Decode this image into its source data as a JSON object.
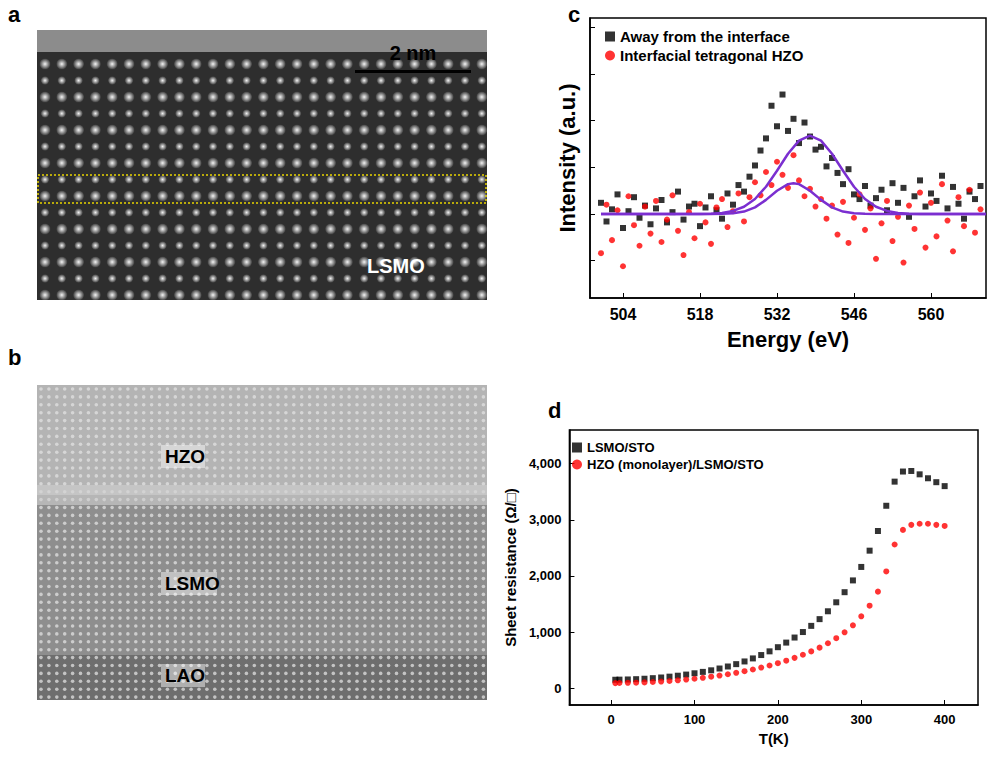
{
  "images": [
    {
      "panel": "a",
      "scale_bar": "2 nm",
      "labels": [
        "LSMO"
      ]
    },
    {
      "panel": "b",
      "labels": [
        "HZO",
        "LSMO",
        "LAO"
      ]
    }
  ],
  "chart_data": [
    {
      "panel": "c",
      "type": "scatter",
      "xlabel": "Energy (eV)",
      "ylabel": "Intensity (a.u.)",
      "xlim": [
        498,
        570
      ],
      "xticks": [
        504,
        518,
        532,
        546,
        560
      ],
      "ylim": [
        -9,
        21
      ],
      "yticks": [
        -5,
        0,
        5,
        10,
        15,
        20
      ],
      "tick_labels": "x",
      "legend": "upper left",
      "grid": false,
      "series": [
        {
          "name": "Away from the interface",
          "color": "#000000",
          "marker": "square",
          "x": [
            500,
            501,
            502,
            503,
            504,
            505,
            506,
            507,
            508,
            509,
            510,
            511,
            512,
            513,
            514,
            515,
            516,
            517,
            518,
            519,
            520,
            521,
            522,
            523,
            524,
            525,
            526,
            527,
            528,
            529,
            530,
            531,
            532,
            533,
            534,
            535,
            536,
            537,
            538,
            539,
            540,
            541,
            542,
            543,
            544,
            545,
            546,
            547,
            548,
            549,
            550,
            551,
            552,
            553,
            554,
            555,
            556,
            557,
            558,
            559,
            560,
            561,
            562,
            563,
            564,
            565,
            566,
            567,
            568,
            569
          ],
          "values": [
            1.2,
            -0.8,
            0.5,
            2.1,
            -1.5,
            0.3,
            1.8,
            -0.4,
            0.9,
            -1.1,
            0.6,
            1.5,
            -0.9,
            0.2,
            2.4,
            -0.6,
            0.8,
            1.1,
            -1.3,
            0.7,
            1.9,
            0.4,
            -0.5,
            2.2,
            1.0,
            3.1,
            2.4,
            4.0,
            5.2,
            6.8,
            8.1,
            11.6,
            9.4,
            12.8,
            8.9,
            10.2,
            7.6,
            9.8,
            8.3,
            6.9,
            7.2,
            5.1,
            6.0,
            4.4,
            3.2,
            4.8,
            2.1,
            1.6,
            3.0,
            0.9,
            1.7,
            2.6,
            0.4,
            3.3,
            1.2,
            2.8,
            -0.3,
            1.9,
            3.6,
            0.8,
            2.2,
            1.4,
            4.1,
            0.6,
            2.9,
            1.1,
            -0.5,
            2.4,
            1.6,
            3.0
          ]
        },
        {
          "name": "Interfacial tetragonal HZO",
          "color": "#ff0000",
          "marker": "circle",
          "x": [
            500,
            501,
            502,
            503,
            504,
            505,
            506,
            507,
            508,
            509,
            510,
            511,
            512,
            513,
            514,
            515,
            516,
            517,
            518,
            519,
            520,
            521,
            522,
            523,
            524,
            525,
            526,
            527,
            528,
            529,
            530,
            531,
            532,
            533,
            534,
            535,
            536,
            537,
            538,
            539,
            540,
            541,
            542,
            543,
            544,
            545,
            546,
            547,
            548,
            549,
            550,
            551,
            552,
            553,
            554,
            555,
            556,
            557,
            558,
            559,
            560,
            561,
            562,
            563,
            564,
            565,
            566,
            567,
            568,
            569
          ],
          "values": [
            -4.2,
            1.0,
            -2.8,
            0.4,
            -5.6,
            1.9,
            -1.2,
            -3.4,
            0.8,
            -2.1,
            1.4,
            -3.0,
            -0.6,
            2.0,
            -1.8,
            -4.4,
            0.2,
            -2.6,
            1.1,
            -0.9,
            -3.2,
            0.7,
            1.6,
            -1.4,
            0.3,
            2.2,
            -0.8,
            1.8,
            3.4,
            2.0,
            4.5,
            3.1,
            5.6,
            4.2,
            2.8,
            6.3,
            3.6,
            1.9,
            2.7,
            0.8,
            1.6,
            -0.5,
            0.9,
            -2.2,
            1.3,
            -3.1,
            -0.4,
            2.1,
            -1.7,
            0.6,
            -4.8,
            -1.0,
            1.4,
            -2.9,
            -0.3,
            -5.2,
            0.9,
            -1.6,
            2.3,
            -3.6,
            1.2,
            -2.4,
            3.2,
            -0.7,
            -4.0,
            1.8,
            -1.3,
            2.6,
            -2.0,
            0.5
          ]
        },
        {
          "type": "line",
          "color": "#7b2fd0",
          "line_style": "solid",
          "x": [
            500,
            518,
            520,
            522,
            524,
            526,
            528,
            530,
            532,
            534,
            536,
            538,
            540,
            542,
            544,
            546,
            548,
            550,
            552,
            554,
            556,
            558,
            570
          ],
          "values": [
            0,
            0.01,
            0.04,
            0.12,
            0.33,
            0.78,
            1.61,
            2.92,
            4.63,
            6.45,
            7.86,
            8.4,
            7.86,
            6.45,
            4.63,
            2.92,
            1.61,
            0.78,
            0.33,
            0.12,
            0.04,
            0.01,
            0
          ]
        },
        {
          "type": "line",
          "color": "#7b2fd0",
          "line_style": "solid",
          "x": [
            500,
            520,
            522,
            524,
            526,
            528,
            530,
            532,
            534,
            535,
            536,
            538,
            540,
            542,
            544,
            546,
            548,
            550,
            570
          ],
          "values": [
            0,
            0,
            0.02,
            0.08,
            0.26,
            0.71,
            1.51,
            2.49,
            3.2,
            3.3,
            3.2,
            2.49,
            1.51,
            0.71,
            0.26,
            0.08,
            0.02,
            0,
            0
          ]
        }
      ]
    },
    {
      "panel": "d",
      "type": "scatter",
      "xlabel": "T(K)",
      "ylabel": "Sheet resistance (Ω/□)",
      "xlim": [
        -50,
        440
      ],
      "xticks": [
        0,
        100,
        200,
        300,
        400
      ],
      "ylim": [
        -300,
        4600
      ],
      "yticks": [
        0,
        1000,
        2000,
        3000,
        4000
      ],
      "legend": "upper left",
      "grid": false,
      "series": [
        {
          "name": "LSMO/STO",
          "color": "#000000",
          "marker": "square",
          "x": [
            5,
            10,
            20,
            30,
            40,
            50,
            60,
            70,
            80,
            90,
            100,
            110,
            120,
            130,
            140,
            150,
            160,
            170,
            180,
            190,
            200,
            210,
            220,
            230,
            240,
            250,
            260,
            270,
            280,
            290,
            300,
            310,
            320,
            330,
            340,
            350,
            360,
            370,
            380,
            390,
            400
          ],
          "values": [
            150,
            152,
            155,
            160,
            168,
            178,
            190,
            205,
            222,
            242,
            265,
            290,
            318,
            350,
            386,
            428,
            476,
            530,
            590,
            656,
            730,
            812,
            902,
            1000,
            1110,
            1230,
            1370,
            1530,
            1710,
            1920,
            2160,
            2450,
            2800,
            3250,
            3680,
            3860,
            3870,
            3810,
            3740,
            3670,
            3600
          ]
        },
        {
          "name": "HZO (monolayer)/LSMO/STO",
          "color": "#ff0000",
          "marker": "circle",
          "x": [
            5,
            10,
            20,
            30,
            40,
            50,
            60,
            70,
            80,
            90,
            100,
            110,
            120,
            130,
            140,
            150,
            160,
            170,
            180,
            190,
            200,
            210,
            220,
            230,
            240,
            250,
            260,
            270,
            280,
            290,
            300,
            310,
            320,
            330,
            340,
            350,
            360,
            370,
            380,
            390,
            400
          ],
          "values": [
            90,
            92,
            95,
            98,
            103,
            110,
            118,
            128,
            140,
            153,
            168,
            185,
            204,
            225,
            248,
            274,
            302,
            333,
            367,
            404,
            445,
            490,
            540,
            595,
            655,
            722,
            800,
            890,
            995,
            1120,
            1280,
            1470,
            1720,
            2080,
            2560,
            2820,
            2910,
            2930,
            2930,
            2910,
            2890
          ]
        }
      ]
    }
  ]
}
